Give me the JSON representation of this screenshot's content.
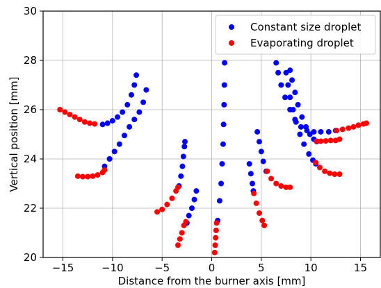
{
  "chart_data": {
    "type": "scatter",
    "xlabel": "Distance from the burner axis [mm]",
    "ylabel": "Vertical position [mm]",
    "xlim": [
      -17,
      17
    ],
    "ylim": [
      20,
      30
    ],
    "xticks": [
      -15,
      -10,
      -5,
      0,
      5,
      10,
      15
    ],
    "yticks": [
      20,
      22,
      24,
      26,
      28,
      30
    ],
    "xtick_labels": [
      "−15",
      "−10",
      "−5",
      "0",
      "5",
      "10",
      "15"
    ],
    "ytick_labels": [
      "20",
      "22",
      "24",
      "26",
      "28",
      "30"
    ],
    "grid": true,
    "legend_position": "top-right",
    "series": [
      {
        "name": "Constant size droplet",
        "color": "#0000ff",
        "points": [
          [
            -11.0,
            25.4
          ],
          [
            -10.5,
            25.45
          ],
          [
            -10.0,
            25.55
          ],
          [
            -9.5,
            25.7
          ],
          [
            -9.0,
            25.9
          ],
          [
            -8.5,
            26.2
          ],
          [
            -8.1,
            26.6
          ],
          [
            -7.8,
            27.0
          ],
          [
            -7.6,
            27.4
          ],
          [
            -10.8,
            23.7
          ],
          [
            -10.3,
            24.0
          ],
          [
            -9.8,
            24.3
          ],
          [
            -9.3,
            24.6
          ],
          [
            -8.8,
            24.95
          ],
          [
            -8.3,
            25.3
          ],
          [
            -7.8,
            25.6
          ],
          [
            -7.3,
            25.9
          ],
          [
            -6.9,
            26.3
          ],
          [
            -6.6,
            26.8
          ],
          [
            -3.3,
            22.9
          ],
          [
            -3.1,
            23.3
          ],
          [
            -2.95,
            23.7
          ],
          [
            -2.85,
            24.1
          ],
          [
            -2.75,
            24.5
          ],
          [
            -2.7,
            24.7
          ],
          [
            -2.5,
            21.4
          ],
          [
            -2.3,
            21.7
          ],
          [
            -2.0,
            22.0
          ],
          [
            -1.75,
            22.35
          ],
          [
            -1.55,
            22.7
          ],
          [
            0.6,
            21.5
          ],
          [
            0.8,
            22.3
          ],
          [
            0.95,
            23.0
          ],
          [
            1.05,
            23.8
          ],
          [
            1.15,
            24.6
          ],
          [
            1.2,
            25.4
          ],
          [
            1.25,
            26.2
          ],
          [
            1.28,
            27.0
          ],
          [
            1.3,
            27.9
          ],
          [
            3.8,
            23.8
          ],
          [
            3.95,
            23.4
          ],
          [
            4.1,
            23.0
          ],
          [
            4.2,
            22.7
          ],
          [
            4.6,
            25.1
          ],
          [
            4.8,
            24.7
          ],
          [
            5.0,
            24.3
          ],
          [
            5.2,
            23.9
          ],
          [
            5.5,
            23.5
          ],
          [
            6.5,
            27.9
          ],
          [
            6.7,
            27.5
          ],
          [
            7.0,
            27.0
          ],
          [
            7.4,
            26.5
          ],
          [
            7.9,
            26.0
          ],
          [
            8.4,
            25.6
          ],
          [
            9.0,
            25.3
          ],
          [
            9.6,
            25.15
          ],
          [
            10.3,
            25.1
          ],
          [
            11.0,
            25.1
          ],
          [
            11.8,
            25.1
          ],
          [
            12.5,
            25.15
          ],
          [
            7.9,
            27.6
          ],
          [
            8.1,
            27.2
          ],
          [
            8.4,
            26.7
          ],
          [
            8.7,
            26.2
          ],
          [
            9.1,
            25.7
          ],
          [
            9.5,
            25.3
          ],
          [
            9.9,
            25.0
          ],
          [
            10.3,
            24.8
          ],
          [
            10.6,
            24.7
          ],
          [
            7.5,
            27.5
          ],
          [
            7.7,
            27.0
          ],
          [
            7.9,
            26.5
          ],
          [
            8.2,
            26.0
          ],
          [
            8.5,
            25.5
          ],
          [
            8.9,
            25.0
          ],
          [
            9.3,
            24.6
          ],
          [
            9.8,
            24.2
          ],
          [
            10.2,
            23.95
          ],
          [
            10.5,
            23.8
          ]
        ]
      },
      {
        "name": "Evaporating droplet",
        "color": "#ff0000",
        "points": [
          [
            -15.3,
            26.0
          ],
          [
            -14.8,
            25.9
          ],
          [
            -14.3,
            25.8
          ],
          [
            -13.8,
            25.7
          ],
          [
            -13.3,
            25.6
          ],
          [
            -12.8,
            25.5
          ],
          [
            -12.3,
            25.45
          ],
          [
            -11.8,
            25.42
          ],
          [
            -13.5,
            23.3
          ],
          [
            -13.0,
            23.28
          ],
          [
            -12.5,
            23.28
          ],
          [
            -12.0,
            23.3
          ],
          [
            -11.5,
            23.35
          ],
          [
            -11.0,
            23.45
          ],
          [
            -10.8,
            23.55
          ],
          [
            -5.5,
            21.85
          ],
          [
            -5.0,
            21.95
          ],
          [
            -4.5,
            22.15
          ],
          [
            -4.0,
            22.4
          ],
          [
            -3.6,
            22.7
          ],
          [
            -3.4,
            22.85
          ],
          [
            -3.4,
            20.5
          ],
          [
            -3.2,
            20.75
          ],
          [
            -3.0,
            21.0
          ],
          [
            -2.8,
            21.3
          ],
          [
            -2.6,
            21.45
          ],
          [
            0.3,
            20.2
          ],
          [
            0.35,
            20.5
          ],
          [
            0.4,
            20.8
          ],
          [
            0.45,
            21.1
          ],
          [
            0.5,
            21.4
          ],
          [
            4.25,
            22.6
          ],
          [
            4.5,
            22.2
          ],
          [
            4.8,
            21.8
          ],
          [
            5.1,
            21.5
          ],
          [
            5.3,
            21.3
          ],
          [
            5.6,
            23.5
          ],
          [
            6.0,
            23.2
          ],
          [
            6.5,
            23.0
          ],
          [
            7.0,
            22.9
          ],
          [
            7.5,
            22.85
          ],
          [
            7.9,
            22.85
          ],
          [
            10.5,
            23.85
          ],
          [
            10.9,
            23.65
          ],
          [
            11.4,
            23.5
          ],
          [
            11.9,
            23.42
          ],
          [
            12.4,
            23.38
          ],
          [
            12.9,
            23.38
          ],
          [
            10.6,
            24.72
          ],
          [
            11.0,
            24.72
          ],
          [
            11.5,
            24.73
          ],
          [
            12.0,
            24.75
          ],
          [
            12.5,
            24.75
          ],
          [
            12.9,
            24.8
          ],
          [
            12.6,
            25.15
          ],
          [
            13.2,
            25.2
          ],
          [
            13.8,
            25.25
          ],
          [
            14.3,
            25.3
          ],
          [
            14.8,
            25.37
          ],
          [
            15.3,
            25.42
          ],
          [
            15.6,
            25.45
          ]
        ]
      }
    ]
  }
}
